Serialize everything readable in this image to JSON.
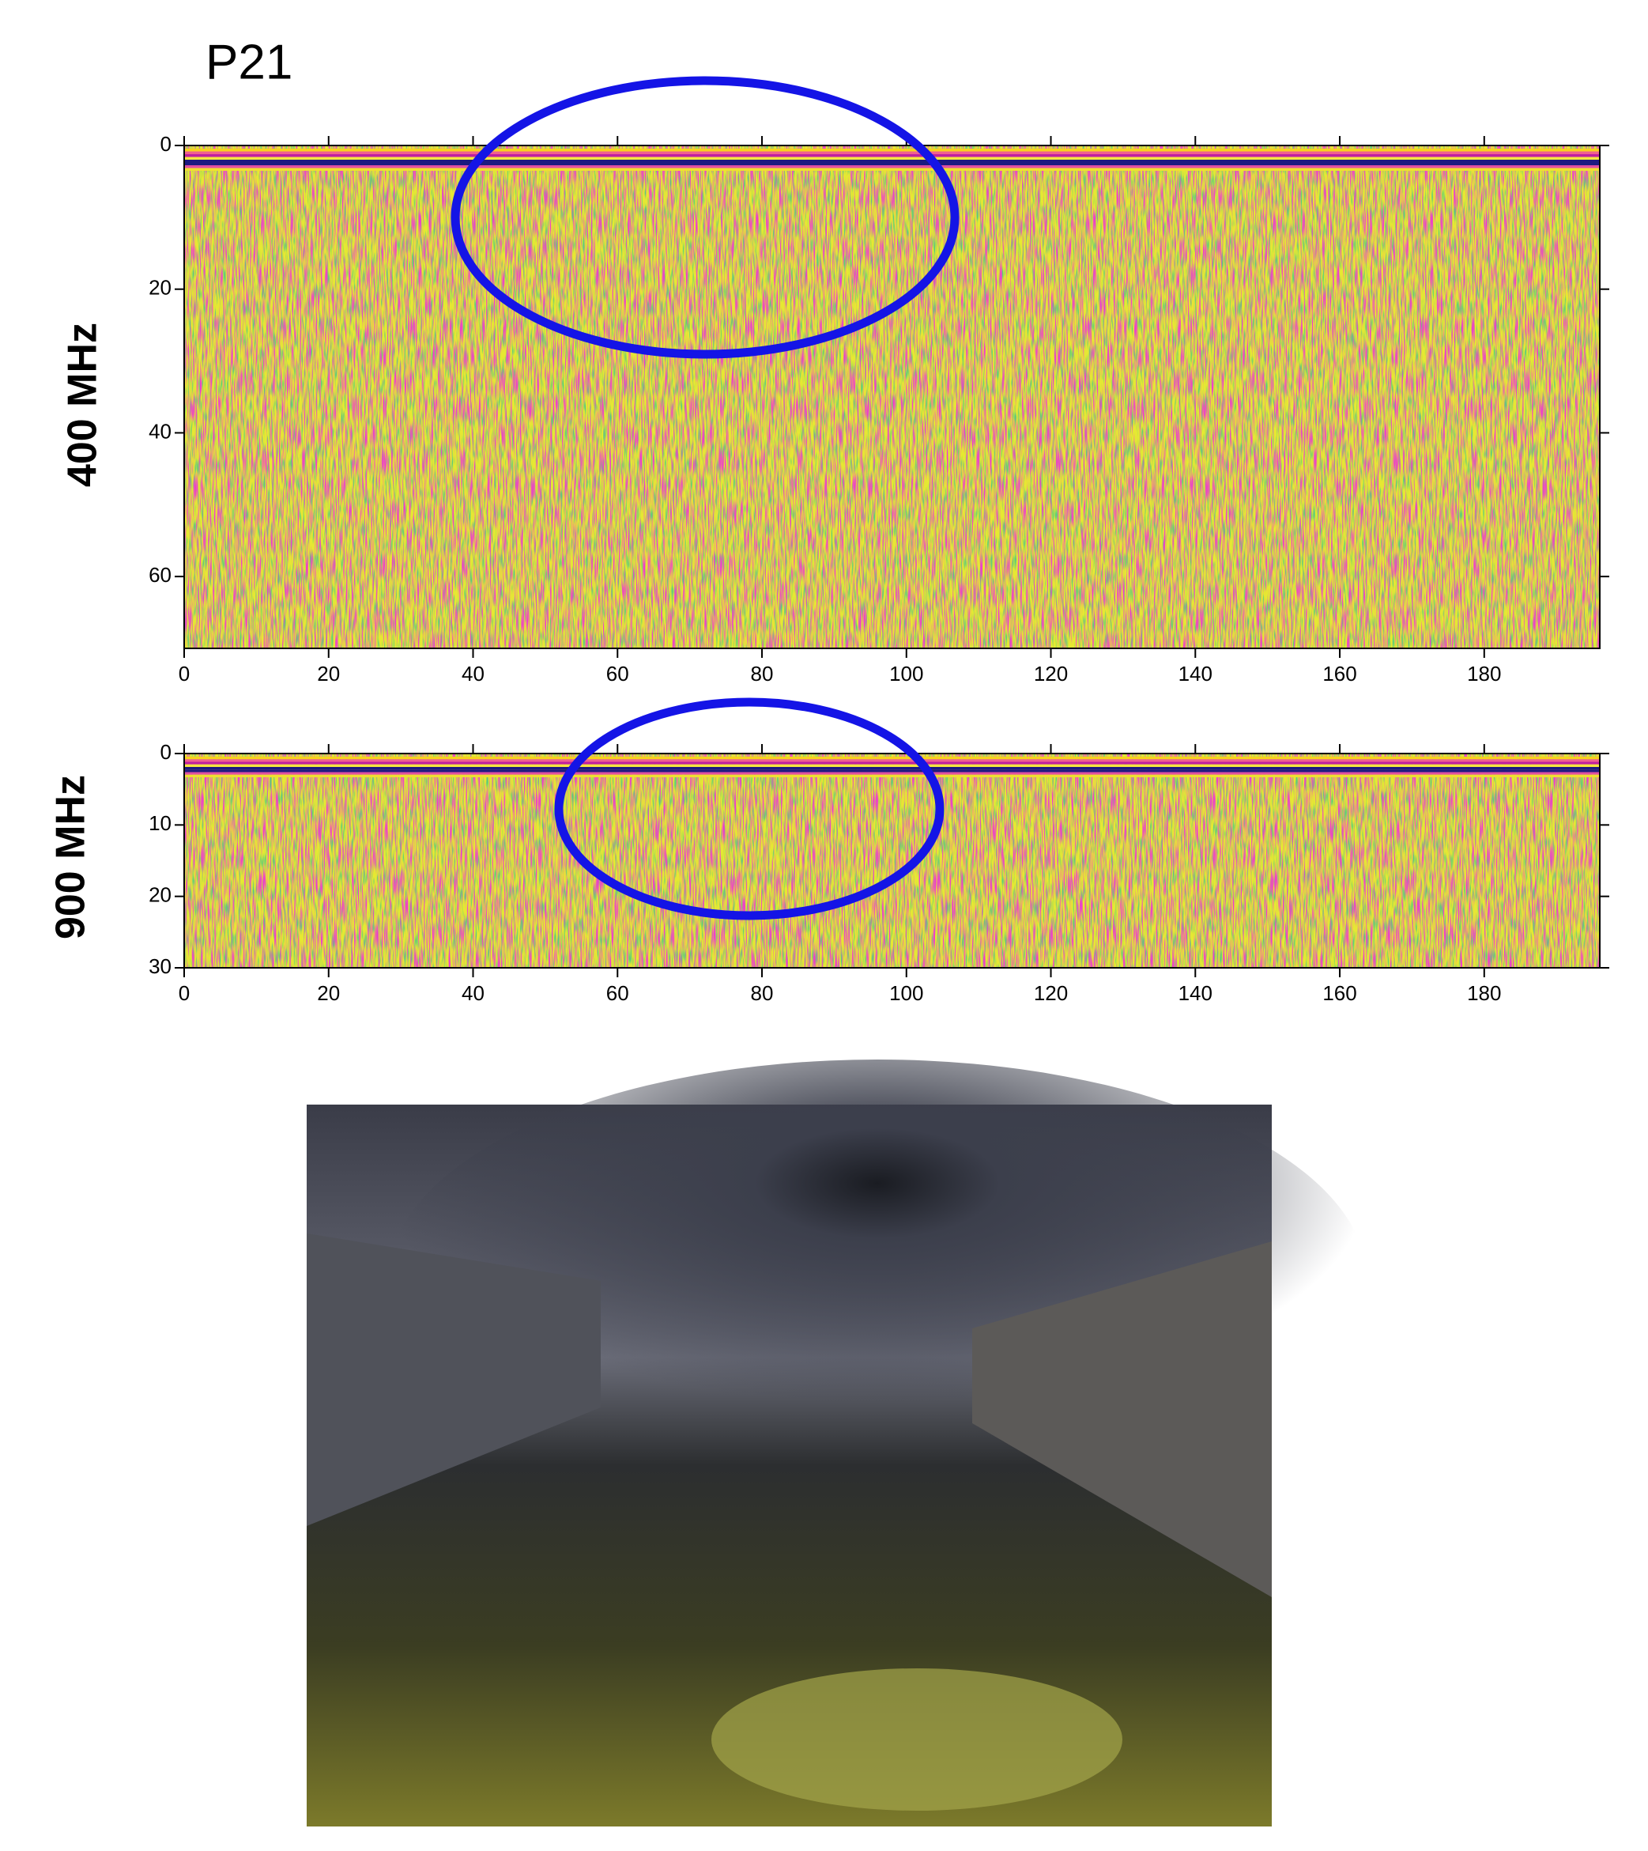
{
  "title": "P21",
  "chart_data": [
    {
      "type": "radargram",
      "ylabel": "400 MHz",
      "xlim": [
        0,
        196
      ],
      "xticks": [
        0,
        20,
        40,
        60,
        80,
        100,
        120,
        140,
        160,
        180
      ],
      "ylim": [
        0,
        70
      ],
      "yticks": [
        0,
        20,
        40,
        60
      ]
    },
    {
      "type": "radargram",
      "ylabel": "900 MHz",
      "xlim": [
        0,
        196
      ],
      "xticks": [
        0,
        20,
        40,
        60,
        80,
        100,
        120,
        140,
        160,
        180
      ],
      "ylim": [
        0,
        30
      ],
      "yticks": [
        0,
        10,
        20,
        30
      ]
    }
  ]
}
